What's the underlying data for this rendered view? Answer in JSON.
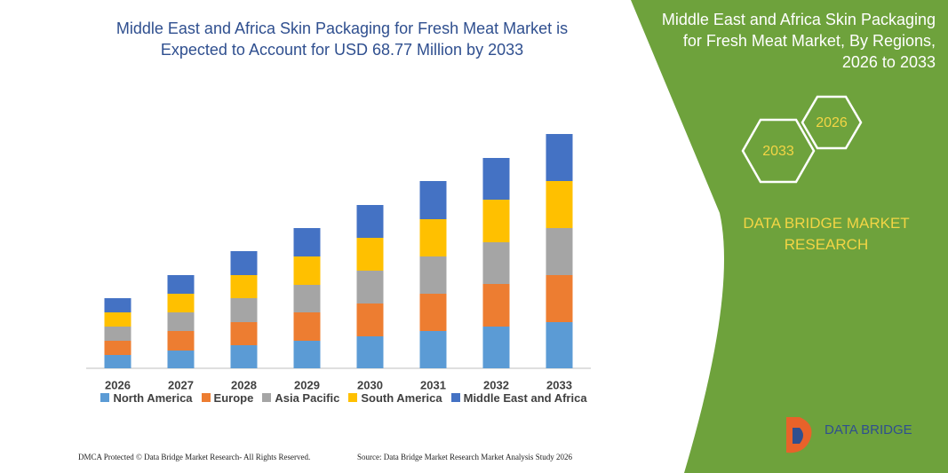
{
  "chart_data": {
    "type": "bar",
    "stacked": true,
    "title": "Middle East and Africa Skin Packaging for Fresh Meat Market is Expected to Account for USD 68.77 Million by 2033",
    "categories": [
      "2026",
      "2027",
      "2028",
      "2029",
      "2030",
      "2031",
      "2032",
      "2033"
    ],
    "series": [
      {
        "name": "North America",
        "color": "#5b9bd5",
        "values": [
          15,
          20,
          26,
          31,
          36,
          42,
          47,
          52
        ]
      },
      {
        "name": "Europe",
        "color": "#ed7d31",
        "values": [
          16,
          22,
          26,
          32,
          37,
          42,
          48,
          53
        ]
      },
      {
        "name": "Asia Pacific",
        "color": "#a5a5a5",
        "values": [
          16,
          21,
          27,
          31,
          37,
          42,
          47,
          53
        ]
      },
      {
        "name": "South America",
        "color": "#ffc000",
        "values": [
          16,
          21,
          26,
          32,
          37,
          42,
          48,
          53
        ]
      },
      {
        "name": "Middle East and Africa",
        "color": "#4472c4",
        "values": [
          16,
          21,
          27,
          32,
          37,
          43,
          47,
          53
        ]
      }
    ],
    "ylim": [
      0,
      270
    ]
  },
  "panel": {
    "title": "Middle East and Africa Skin Packaging for Fresh Meat Market, By Regions, 2026 to 2033",
    "hexagons": [
      "2033",
      "2026"
    ],
    "brand": "DATA BRIDGE MARKET RESEARCH",
    "logo": "DATA BRIDGE"
  },
  "footer": {
    "copyright": "DMCA Protected © Data Bridge Market Research-  All Rights Reserved.",
    "source": "Source: Data Bridge Market Research  Market Analysis Study 2026"
  }
}
